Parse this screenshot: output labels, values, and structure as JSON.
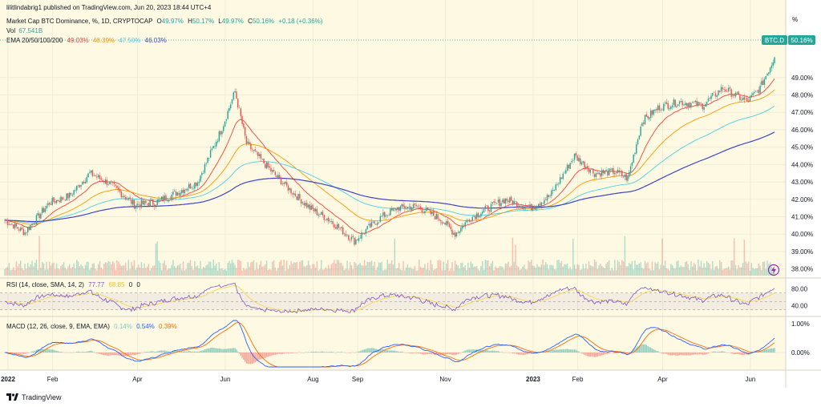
{
  "header": {
    "publisher": "lilitlindabrig1 published on TradingView.com, Jun 20, 2023 18:44 UTC+4",
    "symbol_line": "Market Cap BTC Dominance, %, 1D, CRYPTOCAP",
    "ohlc": {
      "open_label": "O",
      "open": "49.97%",
      "high_label": "H",
      "high": "50.17%",
      "low_label": "L",
      "low": "49.97%",
      "close_label": "C",
      "close": "50.16%",
      "change": "+0.18 (+0.36%)"
    },
    "vol_label": "Vol",
    "vol_value": "67.541B",
    "ema_label": "EMA 20/50/100/200",
    "ema_values": [
      "49.03%",
      "48.39%",
      "47.50%",
      "46.03%"
    ]
  },
  "price_axis": {
    "unit": "%",
    "ticks": [
      "49.00%",
      "48.00%",
      "47.00%",
      "46.00%",
      "45.00%",
      "44.00%",
      "43.00%",
      "42.00%",
      "41.00%",
      "40.00%",
      "39.00%",
      "38.00%"
    ],
    "tick_values": [
      49,
      48,
      47,
      46,
      45,
      44,
      43,
      42,
      41,
      40,
      39,
      38
    ],
    "symbol_tag": "BTC.D",
    "last_price": "50.16%"
  },
  "rsi": {
    "label": "RSI (14, close, SMA, 14, 2)",
    "values": [
      "77.77",
      "68.85",
      "0",
      "0"
    ],
    "ticks": [
      "80.00",
      "40.00"
    ],
    "tick_values": [
      80,
      40
    ]
  },
  "macd": {
    "label": "MACD (12, 26, close, 9, EMA, EMA)",
    "values": [
      "0.14%",
      "0.54%",
      "0.39%"
    ],
    "ticks": [
      "1.00%",
      "0.00%"
    ],
    "tick_values": [
      1,
      0
    ]
  },
  "time_axis": {
    "labels": [
      "2022",
      "Feb",
      "Apr",
      "Jun",
      "Aug",
      "Sep",
      "Nov",
      "2023",
      "Feb",
      "Apr",
      "Jun"
    ],
    "bold": [
      true,
      false,
      false,
      false,
      false,
      false,
      false,
      true,
      false,
      false,
      false
    ]
  },
  "footer": {
    "logo_text": "TradingView"
  },
  "colors": {
    "background": "#fdf9e3",
    "up": "#26a69a",
    "down": "#ef5350",
    "ema20": "#f44336",
    "ema50": "#ff9800",
    "ema100": "#4dd0e1",
    "ema200": "#3f44c7",
    "rsi_line": "#7e57c2",
    "rsi_ma": "#f5d442",
    "macd_line": "#2962ff",
    "signal_line": "#ff6d00"
  },
  "chart_data": {
    "type": "candlestick",
    "title": "Market Cap BTC Dominance, %, 1D, CRYPTOCAP",
    "x_range": [
      "2022-01-01",
      "2023-06-20"
    ],
    "ylim": [
      37.8,
      50.6
    ],
    "close_series": {
      "x": [
        "2022-01-01",
        "2022-01-15",
        "2022-02-01",
        "2022-02-15",
        "2022-03-01",
        "2022-03-15",
        "2022-04-01",
        "2022-04-15",
        "2022-05-01",
        "2022-05-15",
        "2022-06-01",
        "2022-06-10",
        "2022-06-18",
        "2022-07-01",
        "2022-07-15",
        "2022-08-01",
        "2022-08-15",
        "2022-09-01",
        "2022-09-10",
        "2022-09-20",
        "2022-10-01",
        "2022-10-15",
        "2022-11-01",
        "2022-11-10",
        "2022-11-20",
        "2022-12-01",
        "2022-12-15",
        "2023-01-01",
        "2023-01-15",
        "2023-02-01",
        "2023-02-15",
        "2023-03-01",
        "2023-03-10",
        "2023-03-20",
        "2023-04-01",
        "2023-04-15",
        "2023-05-01",
        "2023-05-15",
        "2023-06-01",
        "2023-06-10",
        "2023-06-20"
      ],
      "values": [
        40.8,
        40.1,
        41.8,
        42.2,
        43.5,
        42.9,
        41.7,
        41.8,
        42.4,
        43.0,
        46.1,
        48.2,
        45.2,
        44.0,
        42.8,
        41.5,
        40.8,
        39.6,
        40.3,
        41.0,
        41.5,
        41.6,
        40.8,
        40.0,
        40.9,
        41.4,
        42.0,
        41.5,
        42.2,
        44.5,
        43.5,
        43.6,
        43.2,
        46.5,
        47.3,
        47.6,
        47.4,
        48.4,
        47.6,
        48.4,
        50.16
      ]
    },
    "volume_unit": "B",
    "last_volume": 67.541,
    "indicators": [
      {
        "name": "EMA 20",
        "last": 49.03
      },
      {
        "name": "EMA 50",
        "last": 48.39
      },
      {
        "name": "EMA 100",
        "last": 47.5
      },
      {
        "name": "EMA 200",
        "last": 46.03
      }
    ],
    "rsi_last": 77.77,
    "rsi_ma_last": 68.85,
    "macd_last": {
      "histogram": 0.14,
      "macd": 0.54,
      "signal": 0.39
    }
  }
}
